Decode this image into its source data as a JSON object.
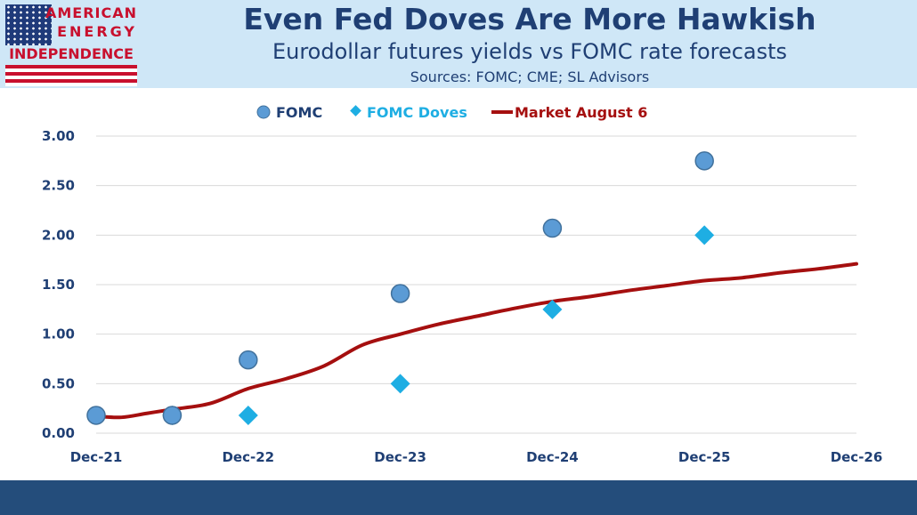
{
  "logo": {
    "line1": "AMERICAN",
    "line2": "ENERGY",
    "line3": "INDEPENDENCE"
  },
  "header": {
    "title": "Even Fed Doves Are More Hawkish",
    "subtitle": "Eurodollar futures yields vs FOMC rate forecasts",
    "sources": "Sources: FOMC; CME; SL Advisors"
  },
  "colors": {
    "header_bg": "#cfe7f7",
    "title": "#1f3f74",
    "fomc": "#5b9bd5",
    "doves": "#1eaee3",
    "market": "#a50f0f",
    "footer": "#244d7b"
  },
  "chart_data": {
    "type": "line",
    "title": "",
    "xlabel": "",
    "ylabel": "",
    "x_ticks": [
      "Dec-21",
      "Dec-22",
      "Dec-23",
      "Dec-24",
      "Dec-25",
      "Dec-26"
    ],
    "y_ticks": [
      "3.00",
      "2.50",
      "2.00",
      "1.50",
      "1.00",
      "0.50",
      "0.00"
    ],
    "xlim": [
      2021.917,
      2026.917
    ],
    "ylim": [
      0,
      3
    ],
    "grid": "horizontal",
    "legend_position": "top",
    "series": [
      {
        "name": "FOMC",
        "kind": "scatter",
        "marker": "circle",
        "color": "#5b9bd5",
        "points": [
          [
            2021.917,
            0.18
          ],
          [
            2022.417,
            0.18
          ],
          [
            2022.917,
            0.74
          ],
          [
            2023.917,
            1.41
          ],
          [
            2024.917,
            2.07
          ],
          [
            2025.917,
            2.75
          ]
        ]
      },
      {
        "name": "FOMC Doves",
        "kind": "scatter",
        "marker": "diamond",
        "color": "#1eaee3",
        "points": [
          [
            2022.417,
            0.18
          ],
          [
            2022.917,
            0.18
          ],
          [
            2023.917,
            0.5
          ],
          [
            2024.917,
            1.25
          ],
          [
            2025.917,
            2.0
          ]
        ]
      },
      {
        "name": "Market August 6",
        "kind": "line",
        "color": "#a50f0f",
        "points": [
          [
            2021.917,
            0.17
          ],
          [
            2022.083,
            0.16
          ],
          [
            2022.25,
            0.2
          ],
          [
            2022.417,
            0.24
          ],
          [
            2022.667,
            0.3
          ],
          [
            2022.917,
            0.45
          ],
          [
            2023.167,
            0.55
          ],
          [
            2023.417,
            0.68
          ],
          [
            2023.667,
            0.89
          ],
          [
            2023.917,
            1.0
          ],
          [
            2024.167,
            1.1
          ],
          [
            2024.417,
            1.18
          ],
          [
            2024.667,
            1.26
          ],
          [
            2024.917,
            1.33
          ],
          [
            2025.167,
            1.38
          ],
          [
            2025.417,
            1.44
          ],
          [
            2025.667,
            1.49
          ],
          [
            2025.917,
            1.54
          ],
          [
            2026.167,
            1.57
          ],
          [
            2026.417,
            1.62
          ],
          [
            2026.667,
            1.66
          ],
          [
            2026.917,
            1.71
          ]
        ]
      }
    ]
  }
}
